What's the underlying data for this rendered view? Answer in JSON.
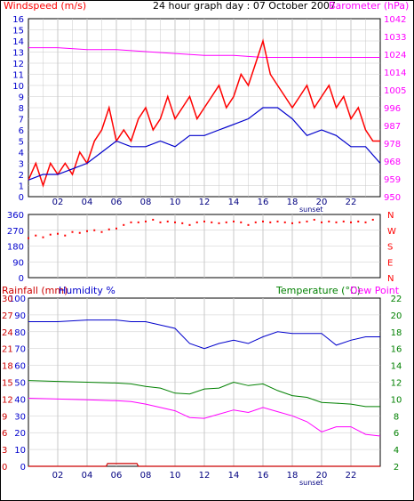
{
  "title": "24 hour graph day : 07 October 2007",
  "colors": {
    "wind": "#ff0000",
    "windAvg": "#0000cc",
    "baro": "#ff00ff",
    "dir": "#ff0000",
    "humidity": "#0000cc",
    "temperature": "#008000",
    "dewpoint": "#ff00ff",
    "rain": "#cc0000",
    "grid": "#c8c8c8",
    "leftAxis": "#0000cc"
  },
  "panels": {
    "wind": {
      "left_label": "Windspeed (m/s)",
      "right_label": "Barometer (hPa)",
      "left_ticks": [
        "0",
        "1",
        "2",
        "3",
        "4",
        "5",
        "6",
        "7",
        "8",
        "9",
        "10",
        "11",
        "12",
        "13",
        "14",
        "15",
        "16"
      ],
      "right_ticks": [
        "950",
        "959",
        "968",
        "978",
        "987",
        "996",
        "1005",
        "1014",
        "1024",
        "1033",
        "1042"
      ],
      "x_ticks": [
        "02",
        "04",
        "06",
        "08",
        "10",
        "12",
        "14",
        "16",
        "18",
        "20",
        "22"
      ],
      "x_note": "sunset"
    },
    "direction": {
      "left_ticks": [
        "0",
        "90",
        "180",
        "270",
        "360"
      ],
      "right_ticks": [
        "N",
        "E",
        "S",
        "W",
        "N"
      ]
    },
    "temp": {
      "left_label_rain": "Rainfall (mm)",
      "left_label_hum": "Humidity %",
      "right_label_temp": "Temperature (°C)",
      "right_label_dew": "Dew Point",
      "hum_ticks": [
        "0",
        "10",
        "20",
        "30",
        "40",
        "50",
        "60",
        "70",
        "80",
        "90",
        "100"
      ],
      "rain_ticks": [
        "0",
        "3",
        "6",
        "9",
        "12",
        "15",
        "18",
        "21",
        "24",
        "27",
        "30"
      ],
      "right_ticks": [
        "2",
        "4",
        "6",
        "8",
        "10",
        "12",
        "14",
        "16",
        "18",
        "20",
        "22"
      ],
      "x_ticks": [
        "02",
        "04",
        "06",
        "08",
        "10",
        "12",
        "14",
        "16",
        "18",
        "20",
        "22"
      ],
      "x_note": "sunset"
    }
  },
  "chart_data": [
    {
      "type": "line",
      "title": "24 hour graph day : 07 October 2007",
      "xlabel": "",
      "x_unit": "hour",
      "xlim": [
        0,
        24
      ],
      "series": [
        {
          "name": "Windspeed (m/s)",
          "axis": "left",
          "ylim": [
            0,
            16
          ],
          "x": [
            0,
            0.5,
            1,
            1.5,
            2,
            2.5,
            3,
            3.5,
            4,
            4.5,
            5,
            5.5,
            6,
            6.5,
            7,
            7.5,
            8,
            8.5,
            9,
            9.5,
            10,
            10.5,
            11,
            11.5,
            12,
            12.5,
            13,
            13.5,
            14,
            14.5,
            15,
            15.5,
            16,
            16.5,
            17,
            17.5,
            18,
            18.5,
            19,
            19.5,
            20,
            20.5,
            21,
            21.5,
            22,
            22.5,
            23,
            23.5,
            24
          ],
          "values": [
            1.5,
            3,
            1,
            3,
            2,
            3,
            2,
            4,
            3,
            5,
            6,
            8,
            5,
            6,
            5,
            7,
            8,
            6,
            7,
            9,
            7,
            8,
            9,
            7,
            8,
            9,
            10,
            8,
            9,
            11,
            10,
            12,
            14,
            11,
            10,
            9,
            8,
            9,
            10,
            8,
            9,
            10,
            8,
            9,
            7,
            8,
            6,
            5,
            5
          ]
        },
        {
          "name": "Windspeed average (m/s)",
          "axis": "left",
          "ylim": [
            0,
            16
          ],
          "x": [
            0,
            1,
            2,
            3,
            4,
            5,
            6,
            7,
            8,
            9,
            10,
            11,
            12,
            13,
            14,
            15,
            16,
            17,
            18,
            19,
            20,
            21,
            22,
            23,
            24
          ],
          "values": [
            1.5,
            2,
            2,
            2.5,
            3,
            4,
            5,
            4.5,
            4.5,
            5,
            4.5,
            5.5,
            5.5,
            6,
            6.5,
            7,
            8,
            8,
            7,
            5.5,
            6,
            5.5,
            4.5,
            4.5,
            3
          ]
        },
        {
          "name": "Barometer (hPa)",
          "axis": "right",
          "ylim": [
            950,
            1042
          ],
          "x": [
            0,
            2,
            4,
            6,
            8,
            10,
            12,
            14,
            16,
            18,
            20,
            22,
            24
          ],
          "values": [
            1027,
            1027,
            1026,
            1026,
            1025,
            1024,
            1023,
            1023,
            1022,
            1022,
            1022,
            1022,
            1022
          ]
        }
      ]
    },
    {
      "type": "scatter",
      "title": "",
      "xlabel": "",
      "x_unit": "hour",
      "xlim": [
        0,
        24
      ],
      "ylim": [
        0,
        360
      ],
      "series": [
        {
          "name": "",
          "x": [
            0,
            0.5,
            1,
            1.5,
            2,
            2.5,
            3,
            3.5,
            4,
            4.5,
            5,
            5.5,
            6,
            6.5,
            7,
            7.5,
            8,
            8.5,
            9,
            9.5,
            10,
            10.5,
            11,
            11.5,
            12,
            12.5,
            13,
            13.5,
            14,
            14.5,
            15,
            15.5,
            16,
            16.5,
            17,
            17.5,
            18,
            18.5,
            19,
            19.5,
            20,
            20.5,
            21,
            21.5,
            22,
            22.5,
            23,
            23.5
          ],
          "values": [
            225,
            240,
            230,
            245,
            250,
            240,
            260,
            255,
            265,
            270,
            260,
            275,
            280,
            300,
            315,
            315,
            320,
            330,
            315,
            320,
            315,
            310,
            300,
            315,
            320,
            315,
            310,
            315,
            320,
            315,
            300,
            315,
            320,
            315,
            320,
            315,
            310,
            315,
            320,
            330,
            315,
            320,
            315,
            320,
            315,
            320,
            315,
            330
          ]
        }
      ]
    },
    {
      "type": "line",
      "title": "",
      "xlabel": "",
      "x_unit": "hour",
      "xlim": [
        0,
        24
      ],
      "series": [
        {
          "name": "Humidity %",
          "axis": "left",
          "ylim": [
            0,
            100
          ],
          "x": [
            0,
            2,
            4,
            6,
            7,
            8,
            9,
            10,
            11,
            12,
            13,
            14,
            15,
            16,
            17,
            18,
            19,
            20,
            21,
            22,
            23,
            24
          ],
          "values": [
            86,
            86,
            87,
            87,
            86,
            86,
            84,
            82,
            73,
            70,
            73,
            75,
            73,
            77,
            80,
            79,
            79,
            79,
            72,
            75,
            77,
            77
          ]
        },
        {
          "name": "Temperature (°C)",
          "axis": "right",
          "ylim": [
            2,
            22
          ],
          "x": [
            0,
            2,
            4,
            6,
            7,
            8,
            9,
            10,
            11,
            12,
            13,
            14,
            15,
            16,
            17,
            18,
            19,
            20,
            21,
            22,
            23,
            24
          ],
          "values": [
            12.2,
            12.1,
            12,
            11.9,
            11.8,
            11.5,
            11.3,
            10.7,
            10.6,
            11.2,
            11.3,
            12.0,
            11.6,
            11.8,
            11,
            10.4,
            10.2,
            9.6,
            9.5,
            9.4,
            9.1,
            9.1
          ]
        },
        {
          "name": "Dew Point",
          "axis": "right",
          "ylim": [
            2,
            22
          ],
          "x": [
            0,
            2,
            4,
            6,
            7,
            8,
            9,
            10,
            11,
            12,
            13,
            14,
            15,
            16,
            17,
            18,
            19,
            20,
            21,
            22,
            23,
            24
          ],
          "values": [
            10.1,
            10.0,
            9.9,
            9.8,
            9.7,
            9.4,
            9.0,
            8.6,
            7.8,
            7.7,
            8.2,
            8.7,
            8.4,
            9.0,
            8.5,
            8.0,
            7.3,
            6.1,
            6.7,
            6.7,
            5.8,
            5.6
          ]
        },
        {
          "name": "Rainfall (mm)",
          "axis": "left",
          "ylim": [
            0,
            30
          ],
          "x": [
            0,
            5.3,
            5.4,
            7.4,
            7.5,
            24
          ],
          "values": [
            0,
            0,
            0.5,
            0.5,
            0,
            0
          ]
        }
      ]
    }
  ]
}
